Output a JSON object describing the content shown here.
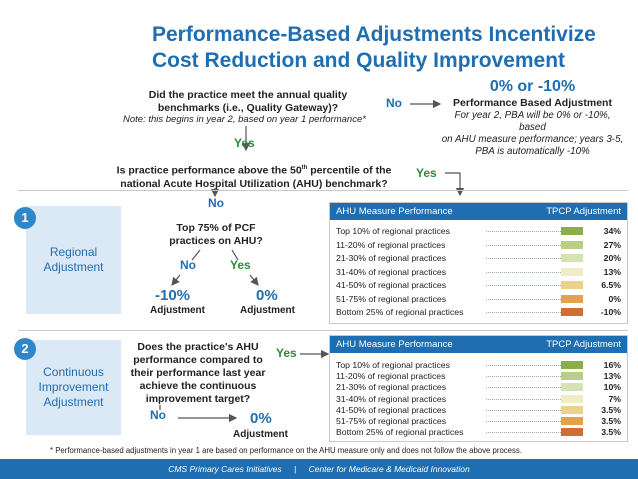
{
  "title": {
    "line1": "Performance-Based Adjustments Incentivize",
    "line2": "Cost Reduction and Quality Improvement"
  },
  "top": {
    "q1_line1": "Did the practice meet the annual quality",
    "q1_line2": "benchmarks (i.e., Quality Gateway)?",
    "note": "Note: this begins in year 2, based on year 1 performance*",
    "no": "No",
    "yes": "Yes",
    "result_value": "0% or -10%",
    "result_title": "Performance Based Adjustment",
    "result_desc_line1": "For year 2, PBA will be 0% or -10%, based",
    "result_desc_line2": "on AHU measure performance; years 3-5,",
    "result_desc_line3": "PBA is automatically -10%",
    "q2_line1": "Is practice performance above the 50",
    "q2_sup": "th",
    "q2_line1b": " percentile of the",
    "q2_line2": "national Acute Hospital Utilization (AHU) benchmark?",
    "q2_yes": "Yes",
    "q2_no": "No"
  },
  "section1": {
    "number": "1",
    "label_line1": "Regional",
    "label_line2": "Adjustment",
    "q_line1": "Top 75% of PCF",
    "q_line2": "practices on AHU?",
    "no": "No",
    "yes": "Yes",
    "left_value": "-10%",
    "left_label": "Adjustment",
    "right_value": "0%",
    "right_label": "Adjustment",
    "panel_head_left": "AHU Measure Performance",
    "panel_head_right": "TPCP Adjustment",
    "rows": [
      {
        "label": "Top 10% of regional practices",
        "value": "34%",
        "color": "#8aaf4a"
      },
      {
        "label": "11-20% of regional practices",
        "value": "27%",
        "color": "#b9cf85"
      },
      {
        "label": "21-30% of regional practices",
        "value": "20%",
        "color": "#d6e2b4"
      },
      {
        "label": "31-40% of regional practices",
        "value": "13%",
        "color": "#f2ecc6"
      },
      {
        "label": "41-50% of regional practices",
        "value": "6.5%",
        "color": "#ebd18c"
      },
      {
        "label": "51-75% of regional practices",
        "value": "0%",
        "color": "#e2a14a"
      },
      {
        "label": "Bottom 25% of regional practices",
        "value": "-10%",
        "color": "#cf6d33"
      }
    ]
  },
  "section2": {
    "number": "2",
    "label_line1": "Continuous",
    "label_line2": "Improvement",
    "label_line3": "Adjustment",
    "q_line1": "Does the practice's AHU",
    "q_line2": "performance compared to",
    "q_line3": "their performance last year",
    "q_line4": "achieve the continuous",
    "q_line5": "improvement target?",
    "yes": "Yes",
    "no": "No",
    "value": "0%",
    "value_label": "Adjustment",
    "panel_head_left": "AHU Measure Performance",
    "panel_head_right": "TPCP Adjustment",
    "rows": [
      {
        "label": "Top 10% of regional practices",
        "value": "16%",
        "color": "#8aaf4a"
      },
      {
        "label": "11-20% of regional practices",
        "value": "13%",
        "color": "#b9cf85"
      },
      {
        "label": "21-30% of regional practices",
        "value": "10%",
        "color": "#d6e2b4"
      },
      {
        "label": "31-40% of regional practices",
        "value": "7%",
        "color": "#f2ecc6"
      },
      {
        "label": "41-50% of regional practices",
        "value": "3.5%",
        "color": "#ebd18c"
      },
      {
        "label": "51-75% of regional practices",
        "value": "3.5%",
        "color": "#e2a14a"
      },
      {
        "label": "Bottom 25% of regional practices",
        "value": "3.5%",
        "color": "#cf6d33"
      }
    ]
  },
  "footnote": "* Performance-based adjustments in year 1 are based on performance on the AHU measure only and does not follow the above process.",
  "footer": {
    "left": "CMS Primary Cares Initiatives",
    "right": "Center for Medicare & Medicaid Innovation"
  }
}
